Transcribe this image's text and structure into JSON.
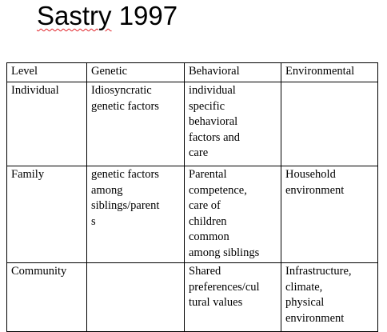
{
  "title": {
    "word": "Sastry",
    "year": "1997"
  },
  "table": {
    "headers": [
      "Level",
      "Genetic",
      "Behavioral",
      "Environmental"
    ],
    "rows": [
      {
        "level": "Individual",
        "genetic": "Idiosyncratic\ngenetic factors",
        "behavioral": "individual\nspecific\nbehavioral\nfactors and\ncare",
        "environmental": ""
      },
      {
        "level": "Family",
        "genetic": "genetic factors\namong\nsiblings/parent\ns",
        "behavioral": "Parental\ncompetence,\ncare of\nchildren\ncommon\namong siblings",
        "environmental": "Household\nenvironment"
      },
      {
        "level": "Community",
        "genetic": "",
        "behavioral": "Shared\npreferences/cul\ntural values",
        "environmental": "Infrastructure,\nclimate,\nphysical\nenvironment"
      }
    ]
  }
}
